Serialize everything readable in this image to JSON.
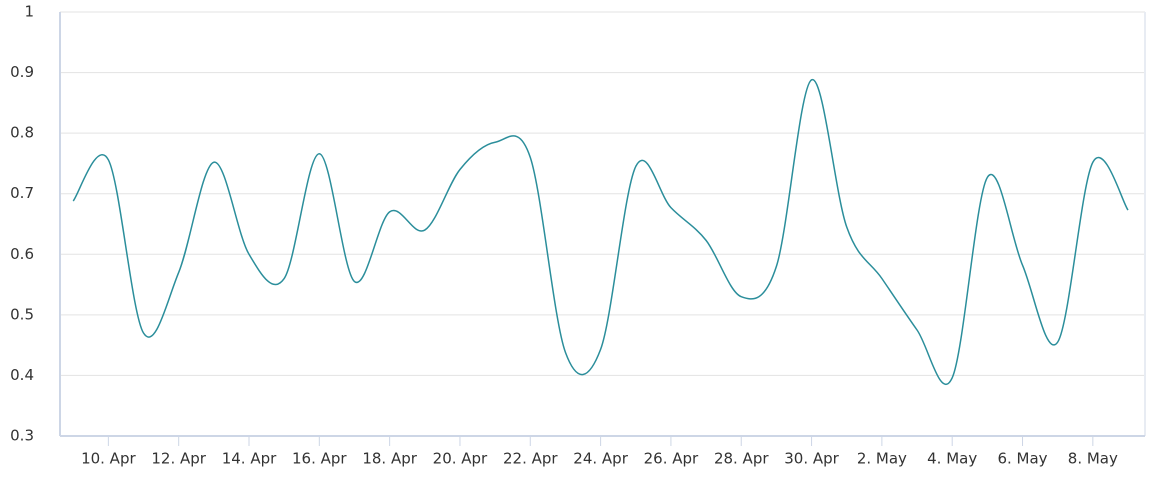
{
  "chart_data": {
    "type": "line",
    "categories": [
      null,
      "10. Apr",
      null,
      "12. Apr",
      null,
      "14. Apr",
      null,
      "16. Apr",
      null,
      "18. Apr",
      null,
      "20. Apr",
      null,
      "22. Apr",
      null,
      "24. Apr",
      null,
      "26. Apr",
      null,
      "28. Apr",
      null,
      "30. Apr",
      null,
      "2. May",
      null,
      "4. May",
      null,
      "6. May",
      null,
      "8. May",
      null
    ],
    "series": [
      {
        "color": "#2b8e9b",
        "values": [
          0.688,
          0.756,
          0.47,
          0.57,
          0.752,
          0.6,
          0.56,
          0.766,
          0.555,
          0.67,
          0.64,
          0.74,
          0.785,
          0.76,
          0.438,
          0.443,
          0.745,
          0.677,
          0.623,
          0.53,
          0.58,
          0.888,
          0.645,
          0.56,
          0.475,
          0.396,
          0.727,
          0.582,
          0.455,
          0.752,
          0.673
        ]
      }
    ],
    "ylim": [
      0.3,
      1
    ],
    "yticks": [
      0.3,
      0.4,
      0.5,
      0.6,
      0.7,
      0.8,
      0.9,
      1
    ],
    "grid": true
  }
}
